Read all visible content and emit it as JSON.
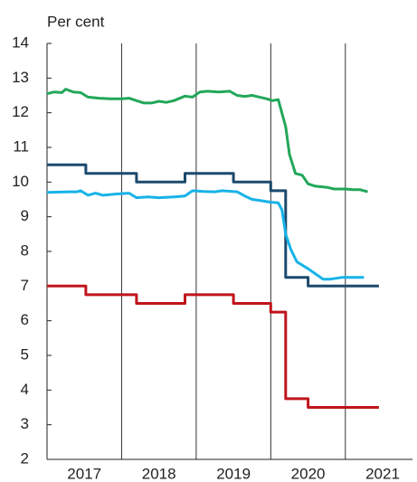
{
  "chart_data": {
    "type": "line",
    "ylabel": "Per cent",
    "xlim": [
      2017,
      2021.9
    ],
    "xticks": [
      {
        "value": 2017.5,
        "label": "2017"
      },
      {
        "value": 2018.5,
        "label": "2018"
      },
      {
        "value": 2019.5,
        "label": "2019"
      },
      {
        "value": 2020.5,
        "label": "2020"
      },
      {
        "value": 2021.5,
        "label": "2021"
      }
    ],
    "xgrid": [
      2018,
      2019,
      2020,
      2021
    ],
    "ylim": [
      2,
      14
    ],
    "yticks": [
      2,
      3,
      4,
      5,
      6,
      7,
      8,
      9,
      10,
      11,
      12,
      13,
      14
    ],
    "series": [
      {
        "color": "#22a75a",
        "x": [
          2017.0,
          2017.1,
          2017.2,
          2017.25,
          2017.35,
          2017.45,
          2017.55,
          2017.7,
          2017.85,
          2018.0,
          2018.1,
          2018.2,
          2018.3,
          2018.4,
          2018.5,
          2018.6,
          2018.7,
          2018.85,
          2018.95,
          2019.05,
          2019.15,
          2019.3,
          2019.45,
          2019.55,
          2019.65,
          2019.75,
          2019.85,
          2019.95,
          2020.02,
          2020.1,
          2020.2,
          2020.25,
          2020.33,
          2020.42,
          2020.5,
          2020.6,
          2020.75,
          2020.85,
          2021.0,
          2021.1,
          2021.2,
          2021.3
        ],
        "values": [
          12.55,
          12.6,
          12.58,
          12.68,
          12.6,
          12.58,
          12.45,
          12.42,
          12.4,
          12.4,
          12.42,
          12.35,
          12.28,
          12.28,
          12.33,
          12.3,
          12.35,
          12.48,
          12.45,
          12.6,
          12.62,
          12.6,
          12.62,
          12.5,
          12.47,
          12.5,
          12.45,
          12.4,
          12.35,
          12.38,
          11.6,
          10.8,
          10.25,
          10.2,
          9.95,
          9.88,
          9.85,
          9.8,
          9.8,
          9.78,
          9.78,
          9.72
        ]
      },
      {
        "color": "#1b4a6e",
        "x": [
          2017.0,
          2017.52,
          2017.52,
          2018.2,
          2018.2,
          2018.85,
          2018.85,
          2019.5,
          2019.5,
          2020.0,
          2020.0,
          2020.2,
          2020.2,
          2020.5,
          2020.5,
          2021.45
        ],
        "values": [
          10.5,
          10.5,
          10.25,
          10.25,
          10.0,
          10.0,
          10.25,
          10.25,
          10.0,
          10.0,
          9.75,
          9.75,
          7.25,
          7.25,
          7.0,
          7.0
        ]
      },
      {
        "color": "#17b3e8",
        "x": [
          2017.0,
          2017.3,
          2017.4,
          2017.45,
          2017.55,
          2017.65,
          2017.75,
          2017.9,
          2018.1,
          2018.2,
          2018.35,
          2018.5,
          2018.7,
          2018.85,
          2018.95,
          2019.1,
          2019.25,
          2019.35,
          2019.55,
          2019.65,
          2019.75,
          2019.85,
          2020.0,
          2020.1,
          2020.15,
          2020.2,
          2020.27,
          2020.35,
          2020.5,
          2020.6,
          2020.7,
          2020.8,
          2020.95,
          2021.1,
          2021.25
        ],
        "values": [
          9.7,
          9.72,
          9.72,
          9.75,
          9.62,
          9.68,
          9.62,
          9.65,
          9.68,
          9.55,
          9.57,
          9.55,
          9.57,
          9.6,
          9.75,
          9.73,
          9.72,
          9.75,
          9.72,
          9.6,
          9.5,
          9.47,
          9.42,
          9.4,
          9.2,
          8.5,
          8.05,
          7.7,
          7.5,
          7.35,
          7.2,
          7.2,
          7.25,
          7.25,
          7.25
        ]
      },
      {
        "color": "#c0141c",
        "x": [
          2017.0,
          2017.52,
          2017.52,
          2018.2,
          2018.2,
          2018.85,
          2018.85,
          2019.5,
          2019.5,
          2020.0,
          2020.0,
          2020.2,
          2020.2,
          2020.5,
          2020.5,
          2021.45
        ],
        "values": [
          7.0,
          7.0,
          6.75,
          6.75,
          6.5,
          6.5,
          6.75,
          6.75,
          6.5,
          6.5,
          6.25,
          6.25,
          3.75,
          3.75,
          3.5,
          3.5
        ]
      }
    ]
  }
}
